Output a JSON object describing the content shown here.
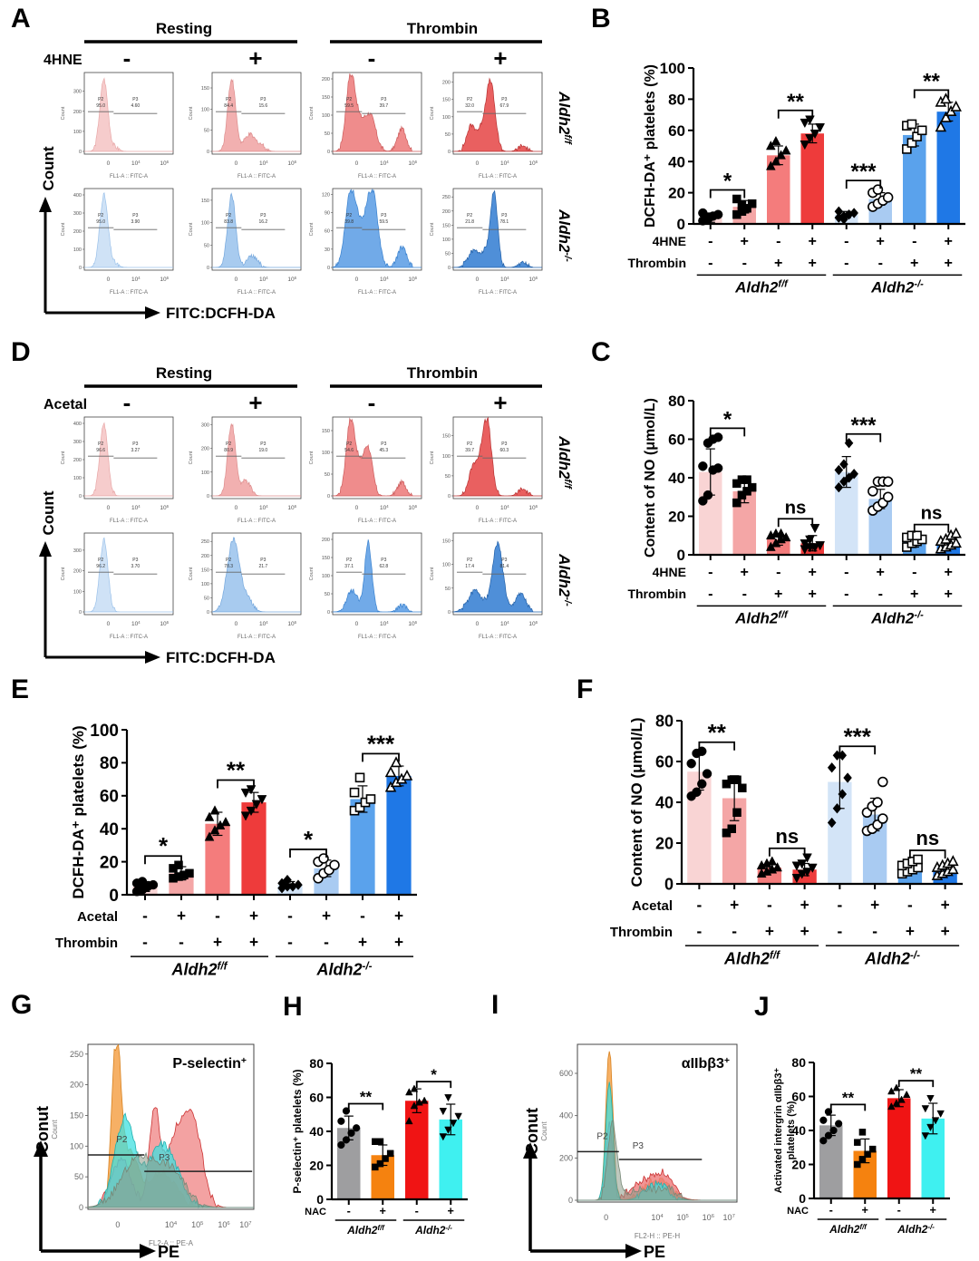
{
  "panel_letters": {
    "A": "A",
    "B": "B",
    "C": "C",
    "D": "D",
    "E": "E",
    "F": "F",
    "G": "G",
    "H": "H",
    "I": "I",
    "J": "J"
  },
  "colors": {
    "ff_minus_rest": "#f9d4d4",
    "ff_plus_rest": "#f4a6a6",
    "ff_minus_thr": "#f47c7c",
    "ff_plus_thr": "#ee3b3b",
    "ko_minus_rest": "#d3e4f7",
    "ko_plus_rest": "#a9cbf2",
    "ko_minus_thr": "#5aa2ec",
    "ko_plus_thr": "#1f78e6",
    "nac_ctrl": "#9e9ea0",
    "nac_ff": "#f5820f",
    "nac_ko_ctrl": "#f01414",
    "nac_ko": "#3ff0f0"
  },
  "flow_A": {
    "header_left": "Resting",
    "header_right": "Thrombin",
    "treatment": "4HNE",
    "signs": [
      "-",
      "+",
      "-",
      "+"
    ],
    "row_labels": [
      "Aldh2",
      "Aldh2"
    ],
    "row_sups": [
      "f/f",
      "-/-"
    ],
    "y_axis": "Count",
    "x_axis": "FITC:DCFH-DA",
    "plot_xlabel": "FL1-A :: FITC-A",
    "plot_ylabel": "Count",
    "x_ticks": [
      "0",
      "10",
      "10"
    ],
    "x_tick_sups": [
      "",
      "4",
      "6"
    ],
    "plots": [
      {
        "row": 0,
        "col": 0,
        "p2": "95.0",
        "p3": "4.60",
        "yticks": [
          "0",
          "100",
          "200",
          "300"
        ],
        "ymax": 380
      },
      {
        "row": 0,
        "col": 1,
        "p2": "84.4",
        "p3": "15.6",
        "yticks": [
          "0",
          "50",
          "100",
          "150"
        ],
        "ymax": 180
      },
      {
        "row": 0,
        "col": 2,
        "p2": "59.5",
        "p3": "39.7",
        "yticks": [
          "0",
          "50",
          "100",
          "150",
          "200"
        ],
        "ymax": 210
      },
      {
        "row": 0,
        "col": 3,
        "p2": "32.0",
        "p3": "67.9",
        "yticks": [
          "0",
          "50",
          "100",
          "150",
          "200"
        ],
        "ymax": 220
      },
      {
        "row": 1,
        "col": 0,
        "p2": "95.0",
        "p3": "3.90",
        "yticks": [
          "0",
          "100",
          "200",
          "300",
          "400"
        ],
        "ymax": 420
      },
      {
        "row": 1,
        "col": 1,
        "p2": "83.8",
        "p3": "16.2",
        "yticks": [
          "0",
          "50",
          "100",
          "150"
        ],
        "ymax": 170
      },
      {
        "row": 1,
        "col": 2,
        "p2": "39.8",
        "p3": "59.5",
        "yticks": [
          "0",
          "30",
          "60",
          "90",
          "120"
        ],
        "ymax": 125
      },
      {
        "row": 1,
        "col": 3,
        "p2": "21.8",
        "p3": "78.1",
        "yticks": [
          "0",
          "50",
          "100",
          "150",
          "200",
          "250"
        ],
        "ymax": 270
      }
    ]
  },
  "flow_D": {
    "header_left": "Resting",
    "header_right": "Thrombin",
    "treatment": "Acetal",
    "signs": [
      "-",
      "+",
      "-",
      "+"
    ],
    "row_labels": [
      "Aldh2",
      "Aldh2"
    ],
    "row_sups": [
      "f/f",
      "-/-"
    ],
    "y_axis": "Count",
    "x_axis": "FITC:DCFH-DA",
    "plot_xlabel": "FL1-A :: FITC-A",
    "plot_ylabel": "Count",
    "x_ticks": [
      "0",
      "10",
      "10"
    ],
    "x_tick_sups": [
      "",
      "4",
      "6"
    ],
    "plots": [
      {
        "row": 0,
        "col": 0,
        "p2": "96.6",
        "p3": "3.27",
        "yticks": [
          "0",
          "100",
          "200",
          "300",
          "400"
        ],
        "ymax": 420
      },
      {
        "row": 0,
        "col": 1,
        "p2": "80.9",
        "p3": "19.0",
        "yticks": [
          "0",
          "100",
          "200",
          "300"
        ],
        "ymax": 320
      },
      {
        "row": 0,
        "col": 2,
        "p2": "54.6",
        "p3": "45.3",
        "yticks": [
          "0",
          "50",
          "100",
          "150"
        ],
        "ymax": 175
      },
      {
        "row": 0,
        "col": 3,
        "p2": "39.7",
        "p3": "60.3",
        "yticks": [
          "0",
          "50",
          "100",
          "150"
        ],
        "ymax": 190
      },
      {
        "row": 1,
        "col": 0,
        "p2": "96.2",
        "p3": "3.70",
        "yticks": [
          "0",
          "100",
          "200",
          "300"
        ],
        "ymax": 370
      },
      {
        "row": 1,
        "col": 1,
        "p2": "78.3",
        "p3": "21.7",
        "yticks": [
          "0",
          "50",
          "100",
          "150",
          "200",
          "250"
        ],
        "ymax": 270
      },
      {
        "row": 1,
        "col": 2,
        "p2": "37.1",
        "p3": "62.8",
        "yticks": [
          "0",
          "50",
          "100",
          "150",
          "200"
        ],
        "ymax": 210
      },
      {
        "row": 1,
        "col": 3,
        "p2": "17.4",
        "p3": "81.4",
        "yticks": [
          "0",
          "50",
          "100",
          "150"
        ],
        "ymax": 160
      }
    ]
  },
  "flow_G": {
    "title": "P-selectin",
    "title_sup": "+",
    "y_axis": "Conut",
    "y_small": "Count",
    "x_axis": "PE",
    "x_small": "FL2-A :: PE-A",
    "yticks": [
      "0",
      "50",
      "100",
      "150",
      "200",
      "250"
    ],
    "ymax": 260,
    "x_ticks": [
      "0",
      "10",
      "10",
      "10",
      "10"
    ],
    "x_tick_sups": [
      "",
      "4",
      "5",
      "6",
      "7"
    ],
    "gates": [
      "P2",
      "P3"
    ]
  },
  "flow_I": {
    "title": "αIIbβ3",
    "title_sup": "+",
    "y_axis": "Conut",
    "y_small": "Count",
    "x_axis": "PE",
    "x_small": "FL2-H :: PE-H",
    "yticks": [
      "0",
      "200",
      "400",
      "600"
    ],
    "ymax": 720,
    "x_ticks": [
      "0",
      "10",
      "10",
      "10",
      "10"
    ],
    "x_tick_sups": [
      "",
      "4",
      "5",
      "6",
      "7"
    ],
    "gates": [
      "P2",
      "P3"
    ]
  },
  "chart_data": [
    {
      "id": "B",
      "type": "bar",
      "ylabel": "DCFH-DA⁺ platelets (%)",
      "ylim": [
        0,
        100
      ],
      "yticks": [
        0,
        20,
        40,
        60,
        80,
        100
      ],
      "row_labels": [
        "4HNE",
        "Thrombin"
      ],
      "rows": [
        [
          "-",
          "+",
          "-",
          "+",
          "-",
          "+",
          "-",
          "+"
        ],
        [
          "-",
          "-",
          "+",
          "+",
          "-",
          "-",
          "+",
          "+"
        ]
      ],
      "groups": [
        {
          "label": "Aldh2",
          "sup": "f/f"
        },
        {
          "label": "Aldh2",
          "sup": "-/-"
        }
      ],
      "values": [
        4,
        11,
        44,
        58,
        6,
        16,
        57,
        72
      ],
      "errors": [
        3,
        4,
        6,
        6,
        2,
        4,
        7,
        6
      ],
      "points": [
        [
          2,
          4,
          5,
          6,
          7,
          3
        ],
        [
          6,
          8,
          10,
          13,
          16,
          12
        ],
        [
          37,
          40,
          44,
          47,
          50,
          53
        ],
        [
          51,
          55,
          58,
          62,
          65,
          67
        ],
        [
          4,
          5,
          6,
          7,
          8,
          3
        ],
        [
          11,
          13,
          15,
          17,
          20,
          22
        ],
        [
          48,
          52,
          56,
          60,
          63,
          64
        ],
        [
          62,
          68,
          72,
          75,
          78,
          80
        ]
      ],
      "markers": [
        "circle",
        "square",
        "triangle",
        "tri-down",
        "diamond",
        "circle-open",
        "square-open",
        "triangle-open"
      ],
      "colors_key": [
        "ff_minus_rest",
        "ff_plus_rest",
        "ff_minus_thr",
        "ff_plus_thr",
        "ko_minus_rest",
        "ko_plus_rest",
        "ko_minus_thr",
        "ko_plus_thr"
      ],
      "sig": [
        {
          "a": 0,
          "b": 1,
          "label": "*"
        },
        {
          "a": 2,
          "b": 3,
          "label": "**"
        },
        {
          "a": 4,
          "b": 5,
          "label": "***"
        },
        {
          "a": 6,
          "b": 7,
          "label": "**"
        }
      ]
    },
    {
      "id": "C",
      "type": "bar",
      "ylabel": "Content of NO (μmol/L)",
      "ylim": [
        0,
        80
      ],
      "yticks": [
        0,
        20,
        40,
        60,
        80
      ],
      "row_labels": [
        "4HNE",
        "Thrombin"
      ],
      "rows": [
        [
          "-",
          "+",
          "-",
          "+",
          "-",
          "+",
          "-",
          "+"
        ],
        [
          "-",
          "-",
          "+",
          "+",
          "-",
          "-",
          "+",
          "+"
        ]
      ],
      "groups": [
        {
          "label": "Aldh2",
          "sup": "f/f"
        },
        {
          "label": "Aldh2",
          "sup": "-/-"
        }
      ],
      "values": [
        43,
        33,
        8,
        6,
        43,
        29,
        7,
        6
      ],
      "errors": [
        12,
        6,
        3,
        4,
        8,
        5,
        3,
        3
      ],
      "points": [
        [
          28,
          31,
          44,
          45,
          46,
          58,
          60,
          61
        ],
        [
          27,
          31,
          33,
          35,
          37,
          39,
          39
        ],
        [
          4,
          6,
          8,
          9,
          10,
          11,
          11
        ],
        [
          3,
          4,
          4,
          5,
          6,
          8,
          14
        ],
        [
          35,
          38,
          40,
          42,
          44,
          47,
          58
        ],
        [
          23,
          25,
          27,
          30,
          33,
          38,
          38,
          38
        ],
        [
          4,
          6,
          7,
          8,
          9,
          10,
          10
        ],
        [
          3,
          4,
          5,
          6,
          7,
          8,
          10,
          11
        ]
      ],
      "markers": [
        "circle",
        "square",
        "triangle",
        "tri-down",
        "diamond",
        "circle-open",
        "square-open",
        "triangle-open"
      ],
      "colors_key": [
        "ff_minus_rest",
        "ff_plus_rest",
        "ff_minus_thr",
        "ff_plus_thr",
        "ko_minus_rest",
        "ko_plus_rest",
        "ko_minus_thr",
        "ko_plus_thr"
      ],
      "sig": [
        {
          "a": 0,
          "b": 1,
          "label": "*"
        },
        {
          "a": 2,
          "b": 3,
          "label": "ns"
        },
        {
          "a": 4,
          "b": 5,
          "label": "***"
        },
        {
          "a": 6,
          "b": 7,
          "label": "ns"
        }
      ]
    },
    {
      "id": "E",
      "type": "bar",
      "ylabel": "DCFH-DA⁺ platelets (%)",
      "ylim": [
        0,
        100
      ],
      "yticks": [
        0,
        20,
        40,
        60,
        80,
        100
      ],
      "row_labels": [
        "Acetal",
        "Thrombin"
      ],
      "rows": [
        [
          "-",
          "+",
          "-",
          "+",
          "-",
          "+",
          "-",
          "+"
        ],
        [
          "-",
          "-",
          "+",
          "+",
          "-",
          "-",
          "+",
          "+"
        ]
      ],
      "groups": [
        {
          "label": "Aldh2",
          "sup": "f/f"
        },
        {
          "label": "Aldh2",
          "sup": "-/-"
        }
      ],
      "values": [
        5,
        13,
        43,
        56,
        6,
        16,
        58,
        72
      ],
      "errors": [
        3,
        4,
        7,
        6,
        2,
        5,
        8,
        6
      ],
      "points": [
        [
          2,
          3,
          5,
          6,
          7,
          8
        ],
        [
          10,
          11,
          12,
          13,
          16,
          18
        ],
        [
          35,
          39,
          42,
          44,
          47,
          51
        ],
        [
          48,
          51,
          55,
          58,
          62,
          64
        ],
        [
          4,
          5,
          5,
          6,
          7,
          9
        ],
        [
          10,
          13,
          15,
          18,
          20,
          22
        ],
        [
          51,
          53,
          56,
          58,
          62,
          71
        ],
        [
          65,
          68,
          70,
          72,
          74,
          80
        ]
      ],
      "markers": [
        "circle",
        "square",
        "triangle",
        "tri-down",
        "diamond",
        "circle-open",
        "square-open",
        "triangle-open"
      ],
      "colors_key": [
        "ff_minus_rest",
        "ff_plus_rest",
        "ff_minus_thr",
        "ff_plus_thr",
        "ko_minus_rest",
        "ko_plus_rest",
        "ko_minus_thr",
        "ko_plus_thr"
      ],
      "sig": [
        {
          "a": 0,
          "b": 1,
          "label": "*"
        },
        {
          "a": 2,
          "b": 3,
          "label": "**"
        },
        {
          "a": 4,
          "b": 5,
          "label": "*"
        },
        {
          "a": 6,
          "b": 7,
          "label": "***"
        }
      ]
    },
    {
      "id": "F",
      "type": "bar",
      "ylabel": "Content of NO (μmol/L)",
      "ylim": [
        0,
        80
      ],
      "yticks": [
        0,
        20,
        40,
        60,
        80
      ],
      "row_labels": [
        "Acetal",
        "Thrombin"
      ],
      "rows": [
        [
          "-",
          "+",
          "-",
          "+",
          "-",
          "+",
          "-",
          "+"
        ],
        [
          "-",
          "-",
          "+",
          "+",
          "-",
          "-",
          "+",
          "+"
        ]
      ],
      "groups": [
        {
          "label": "Aldh2",
          "sup": "f/f"
        },
        {
          "label": "Aldh2",
          "sup": "-/-"
        }
      ],
      "values": [
        55,
        42,
        8,
        7,
        50,
        34,
        8,
        7
      ],
      "errors": [
        9,
        11,
        2,
        3,
        13,
        8,
        3,
        3
      ],
      "points": [
        [
          43,
          45,
          49,
          54,
          59,
          64,
          65
        ],
        [
          25,
          27,
          35,
          47,
          49,
          51,
          51
        ],
        [
          5,
          6,
          7,
          8,
          9,
          10,
          11
        ],
        [
          3,
          5,
          6,
          8,
          9,
          10,
          13
        ],
        [
          30,
          37,
          44,
          52,
          57,
          63,
          63
        ],
        [
          26,
          27,
          29,
          32,
          35,
          38,
          40,
          50
        ],
        [
          5,
          6,
          7,
          8,
          9,
          10,
          11,
          12
        ],
        [
          4,
          5,
          6,
          7,
          8,
          9,
          10,
          11
        ]
      ],
      "markers": [
        "circle",
        "square",
        "triangle",
        "tri-down",
        "diamond",
        "circle-open",
        "square-open",
        "triangle-open"
      ],
      "colors_key": [
        "ff_minus_rest",
        "ff_plus_rest",
        "ff_minus_thr",
        "ff_plus_thr",
        "ko_minus_rest",
        "ko_plus_rest",
        "ko_minus_thr",
        "ko_plus_thr"
      ],
      "sig": [
        {
          "a": 0,
          "b": 1,
          "label": "**"
        },
        {
          "a": 2,
          "b": 3,
          "label": "ns"
        },
        {
          "a": 4,
          "b": 5,
          "label": "***"
        },
        {
          "a": 6,
          "b": 7,
          "label": "ns"
        }
      ]
    },
    {
      "id": "H",
      "type": "bar",
      "ylabel": "P-selectin⁺ platelets (%)",
      "ylim": [
        0,
        80
      ],
      "yticks": [
        0,
        20,
        40,
        60,
        80
      ],
      "row_labels": [
        "NAC"
      ],
      "rows": [
        [
          "-",
          "+",
          "-",
          "+"
        ]
      ],
      "groups": [
        {
          "label": "Aldh2",
          "sup": "f/f"
        },
        {
          "label": "Aldh2",
          "sup": "-/-"
        }
      ],
      "values": [
        42,
        26,
        58,
        47
      ],
      "errors": [
        7,
        6,
        7,
        9
      ],
      "points": [
        [
          32,
          35,
          39,
          42,
          46,
          52
        ],
        [
          19,
          21,
          24,
          27,
          34,
          34
        ],
        [
          46,
          55,
          57,
          58,
          63,
          65
        ],
        [
          37,
          41,
          45,
          49,
          52,
          60
        ]
      ],
      "markers": [
        "circle",
        "square",
        "triangle",
        "tri-down"
      ],
      "colors_key": [
        "nac_ctrl",
        "nac_ff",
        "nac_ko_ctrl",
        "nac_ko"
      ],
      "sig": [
        {
          "a": 0,
          "b": 1,
          "label": "**"
        },
        {
          "a": 2,
          "b": 3,
          "label": "*"
        }
      ]
    },
    {
      "id": "J",
      "type": "bar",
      "ylabel": "Activated intergrin αIIbβ3⁺ platelets (%)",
      "ylim": [
        0,
        80
      ],
      "yticks": [
        0,
        20,
        40,
        60,
        80
      ],
      "row_labels": [
        "NAC"
      ],
      "rows": [
        [
          "-",
          "+",
          "-",
          "+"
        ]
      ],
      "groups": [
        {
          "label": "Aldh2",
          "sup": "f/f"
        },
        {
          "label": "Aldh2",
          "sup": "-/-"
        }
      ],
      "values": [
        43,
        28,
        59,
        47
      ],
      "errors": [
        6,
        7,
        5,
        9
      ],
      "points": [
        [
          34,
          37,
          40,
          44,
          46,
          51
        ],
        [
          20,
          23,
          26,
          29,
          33,
          39
        ],
        [
          54,
          56,
          58,
          61,
          63,
          65
        ],
        [
          37,
          42,
          46,
          50,
          53,
          59
        ]
      ],
      "markers": [
        "circle",
        "square",
        "triangle",
        "tri-down"
      ],
      "colors_key": [
        "nac_ctrl",
        "nac_ff",
        "nac_ko_ctrl",
        "nac_ko"
      ],
      "sig": [
        {
          "a": 0,
          "b": 1,
          "label": "**"
        },
        {
          "a": 2,
          "b": 3,
          "label": "**"
        }
      ]
    }
  ]
}
